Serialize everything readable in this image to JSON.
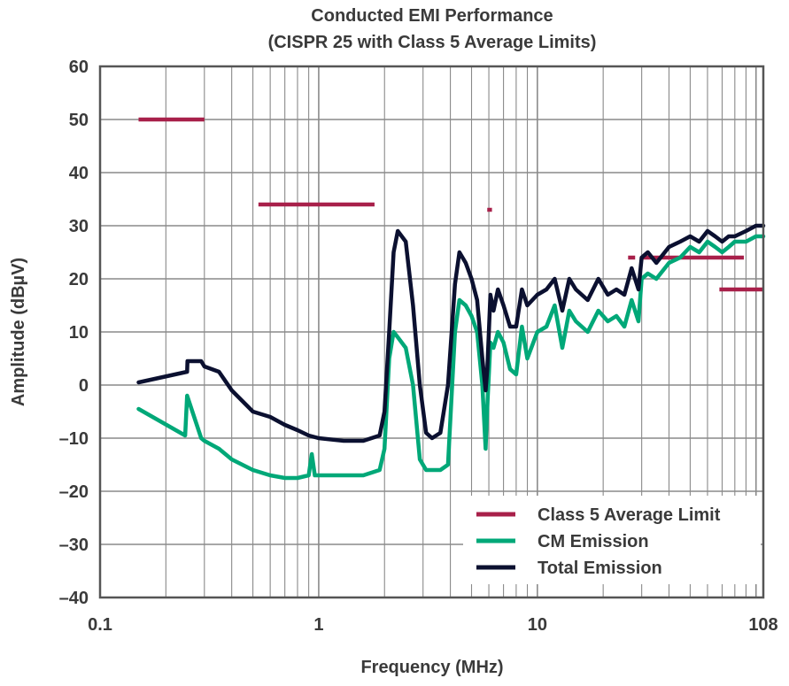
{
  "chart_data": {
    "type": "line",
    "title": "Conducted EMI Performance",
    "subtitle": "(CISPR 25 with Class 5 Average Limits)",
    "xlabel": "Frequency (MHz)",
    "ylabel": "Amplitude (dBµV)",
    "x_scale": "log",
    "xlim": [
      0.1,
      108
    ],
    "ylim": [
      -40,
      60
    ],
    "x_ticks": [
      {
        "value": 0.1,
        "label": "0.1"
      },
      {
        "value": 1,
        "label": "1"
      },
      {
        "value": 10,
        "label": "10"
      },
      {
        "value": 108,
        "label": "108"
      }
    ],
    "y_ticks": [
      {
        "value": 60,
        "label": "60"
      },
      {
        "value": 50,
        "label": "50"
      },
      {
        "value": 40,
        "label": "40"
      },
      {
        "value": 30,
        "label": "30"
      },
      {
        "value": 20,
        "label": "20"
      },
      {
        "value": 10,
        "label": "10"
      },
      {
        "value": 0,
        "label": "0"
      },
      {
        "value": -10,
        "label": "–10"
      },
      {
        "value": -20,
        "label": "–20"
      },
      {
        "value": -30,
        "label": "–30"
      },
      {
        "value": -40,
        "label": "–40"
      }
    ],
    "grid": true,
    "legend_position": "bottom-right",
    "legend": [
      {
        "label": "Class 5 Average Limit",
        "color": "#a8204a"
      },
      {
        "label": "CM Emission",
        "color": "#00a878"
      },
      {
        "label": "Total Emission",
        "color": "#0b1030"
      }
    ],
    "limit_segments": [
      {
        "x": [
          0.15,
          0.3
        ],
        "y": 50
      },
      {
        "x": [
          0.53,
          1.8
        ],
        "y": 34
      },
      {
        "x": [
          5.9,
          6.2
        ],
        "y": 33
      },
      {
        "x": [
          26,
          28
        ],
        "y": 24
      },
      {
        "x": [
          30,
          88
        ],
        "y": 24
      },
      {
        "x": [
          68,
          108
        ],
        "y": 18
      }
    ],
    "series": [
      {
        "name": "Total Emission",
        "color": "#0b1030",
        "x": [
          0.15,
          0.25,
          0.251,
          0.29,
          0.3,
          0.35,
          0.4,
          0.5,
          0.6,
          0.7,
          0.8,
          0.9,
          1.0,
          1.3,
          1.6,
          1.9,
          2.0,
          2.1,
          2.2,
          2.3,
          2.5,
          2.7,
          2.9,
          3.1,
          3.3,
          3.6,
          3.9,
          4.2,
          4.4,
          4.7,
          5.0,
          5.3,
          5.6,
          5.8,
          5.9,
          6.1,
          6.3,
          6.6,
          7.0,
          7.5,
          8.0,
          8.5,
          9.0,
          10,
          11,
          12,
          13,
          14,
          15,
          17,
          19,
          21,
          23,
          25,
          27,
          29,
          30,
          32,
          35,
          40,
          45,
          50,
          55,
          60,
          65,
          70,
          75,
          80,
          90,
          100,
          108
        ],
        "y": [
          0.5,
          2.5,
          4.5,
          4.5,
          3.5,
          2.5,
          -1,
          -5,
          -6,
          -7.5,
          -8.5,
          -9.5,
          -10,
          -10.5,
          -10.5,
          -9.5,
          -5,
          10,
          25,
          29,
          27,
          15,
          0,
          -9,
          -10,
          -9,
          0,
          19,
          25,
          23,
          20,
          16,
          5,
          -1,
          3,
          17,
          14,
          18,
          15,
          11,
          11,
          18,
          15,
          17,
          18,
          20,
          14,
          20,
          18,
          16,
          20,
          17,
          18,
          17,
          22,
          18,
          24,
          25,
          23,
          26,
          27,
          28,
          27,
          29,
          28,
          27,
          28,
          28,
          29,
          30,
          30
        ]
      },
      {
        "name": "CM Emission",
        "color": "#00a878",
        "x": [
          0.15,
          0.245,
          0.25,
          0.29,
          0.3,
          0.35,
          0.4,
          0.5,
          0.6,
          0.7,
          0.8,
          0.9,
          0.93,
          0.96,
          1.0,
          1.3,
          1.6,
          1.9,
          2.0,
          2.1,
          2.2,
          2.3,
          2.5,
          2.7,
          2.9,
          3.1,
          3.3,
          3.6,
          3.9,
          4.2,
          4.4,
          4.7,
          5.0,
          5.3,
          5.6,
          5.8,
          5.9,
          6.1,
          6.3,
          6.6,
          7.0,
          7.5,
          8.0,
          8.5,
          9.0,
          10,
          11,
          12,
          13,
          14,
          15,
          17,
          19,
          21,
          23,
          25,
          27,
          29,
          30,
          32,
          35,
          40,
          45,
          50,
          55,
          60,
          65,
          70,
          75,
          80,
          90,
          100,
          108
        ],
        "y": [
          -4.5,
          -9.5,
          -2,
          -10,
          -10.5,
          -12,
          -14,
          -16,
          -17,
          -17.5,
          -17.5,
          -17,
          -13,
          -17,
          -17,
          -17,
          -17,
          -16,
          -12,
          5,
          10,
          9,
          7,
          0,
          -14,
          -16,
          -16,
          -16,
          -15,
          10,
          16,
          15,
          13,
          10,
          0,
          -12,
          -4,
          8,
          7,
          10,
          8,
          3,
          2,
          11,
          5,
          10,
          11,
          15,
          7,
          14,
          12,
          10,
          14,
          12,
          13,
          11,
          16,
          12,
          20,
          21,
          20,
          23,
          24,
          26,
          25,
          27,
          26,
          25,
          26,
          27,
          27,
          28,
          28
        ]
      }
    ]
  }
}
